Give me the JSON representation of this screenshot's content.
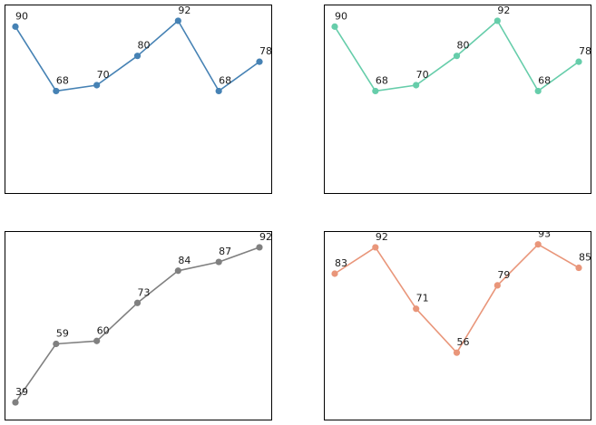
{
  "chart_data": [
    {
      "type": "line",
      "title": "",
      "xlabel": "",
      "ylabel": "",
      "color": "#4682b4",
      "x": [
        0,
        1,
        2,
        3,
        4,
        5,
        6
      ],
      "values": [
        90,
        68,
        70,
        80,
        92,
        68,
        78
      ],
      "labels": [
        "90",
        "68",
        "70",
        "80",
        "92",
        "68",
        "78"
      ],
      "ylim": [
        35,
        96
      ],
      "axis_ticks": false,
      "grid": false
    },
    {
      "type": "line",
      "title": "",
      "xlabel": "",
      "ylabel": "",
      "color": "#66cdaa",
      "x": [
        0,
        1,
        2,
        3,
        4,
        5,
        6
      ],
      "values": [
        90,
        68,
        70,
        80,
        92,
        68,
        78
      ],
      "labels": [
        "90",
        "68",
        "70",
        "80",
        "92",
        "68",
        "78"
      ],
      "ylim": [
        35,
        96
      ],
      "axis_ticks": false,
      "grid": false
    },
    {
      "type": "line",
      "title": "",
      "xlabel": "",
      "ylabel": "",
      "color": "#808080",
      "x": [
        0,
        1,
        2,
        3,
        4,
        5,
        6
      ],
      "values": [
        39,
        59,
        60,
        73,
        84,
        87,
        92
      ],
      "labels": [
        "39",
        "59",
        "60",
        "73",
        "84",
        "87",
        "92"
      ],
      "ylim": [
        35,
        96
      ],
      "axis_ticks": false,
      "grid": false
    },
    {
      "type": "line",
      "title": "",
      "xlabel": "",
      "ylabel": "",
      "color": "#e9967a",
      "x": [
        0,
        1,
        2,
        3,
        4,
        5,
        6
      ],
      "values": [
        83,
        92,
        71,
        56,
        79,
        93,
        85
      ],
      "labels": [
        "83",
        "92",
        "71",
        "56",
        "79",
        "93",
        "85"
      ],
      "ylim": [
        35,
        96
      ],
      "axis_ticks": false,
      "grid": false
    }
  ]
}
